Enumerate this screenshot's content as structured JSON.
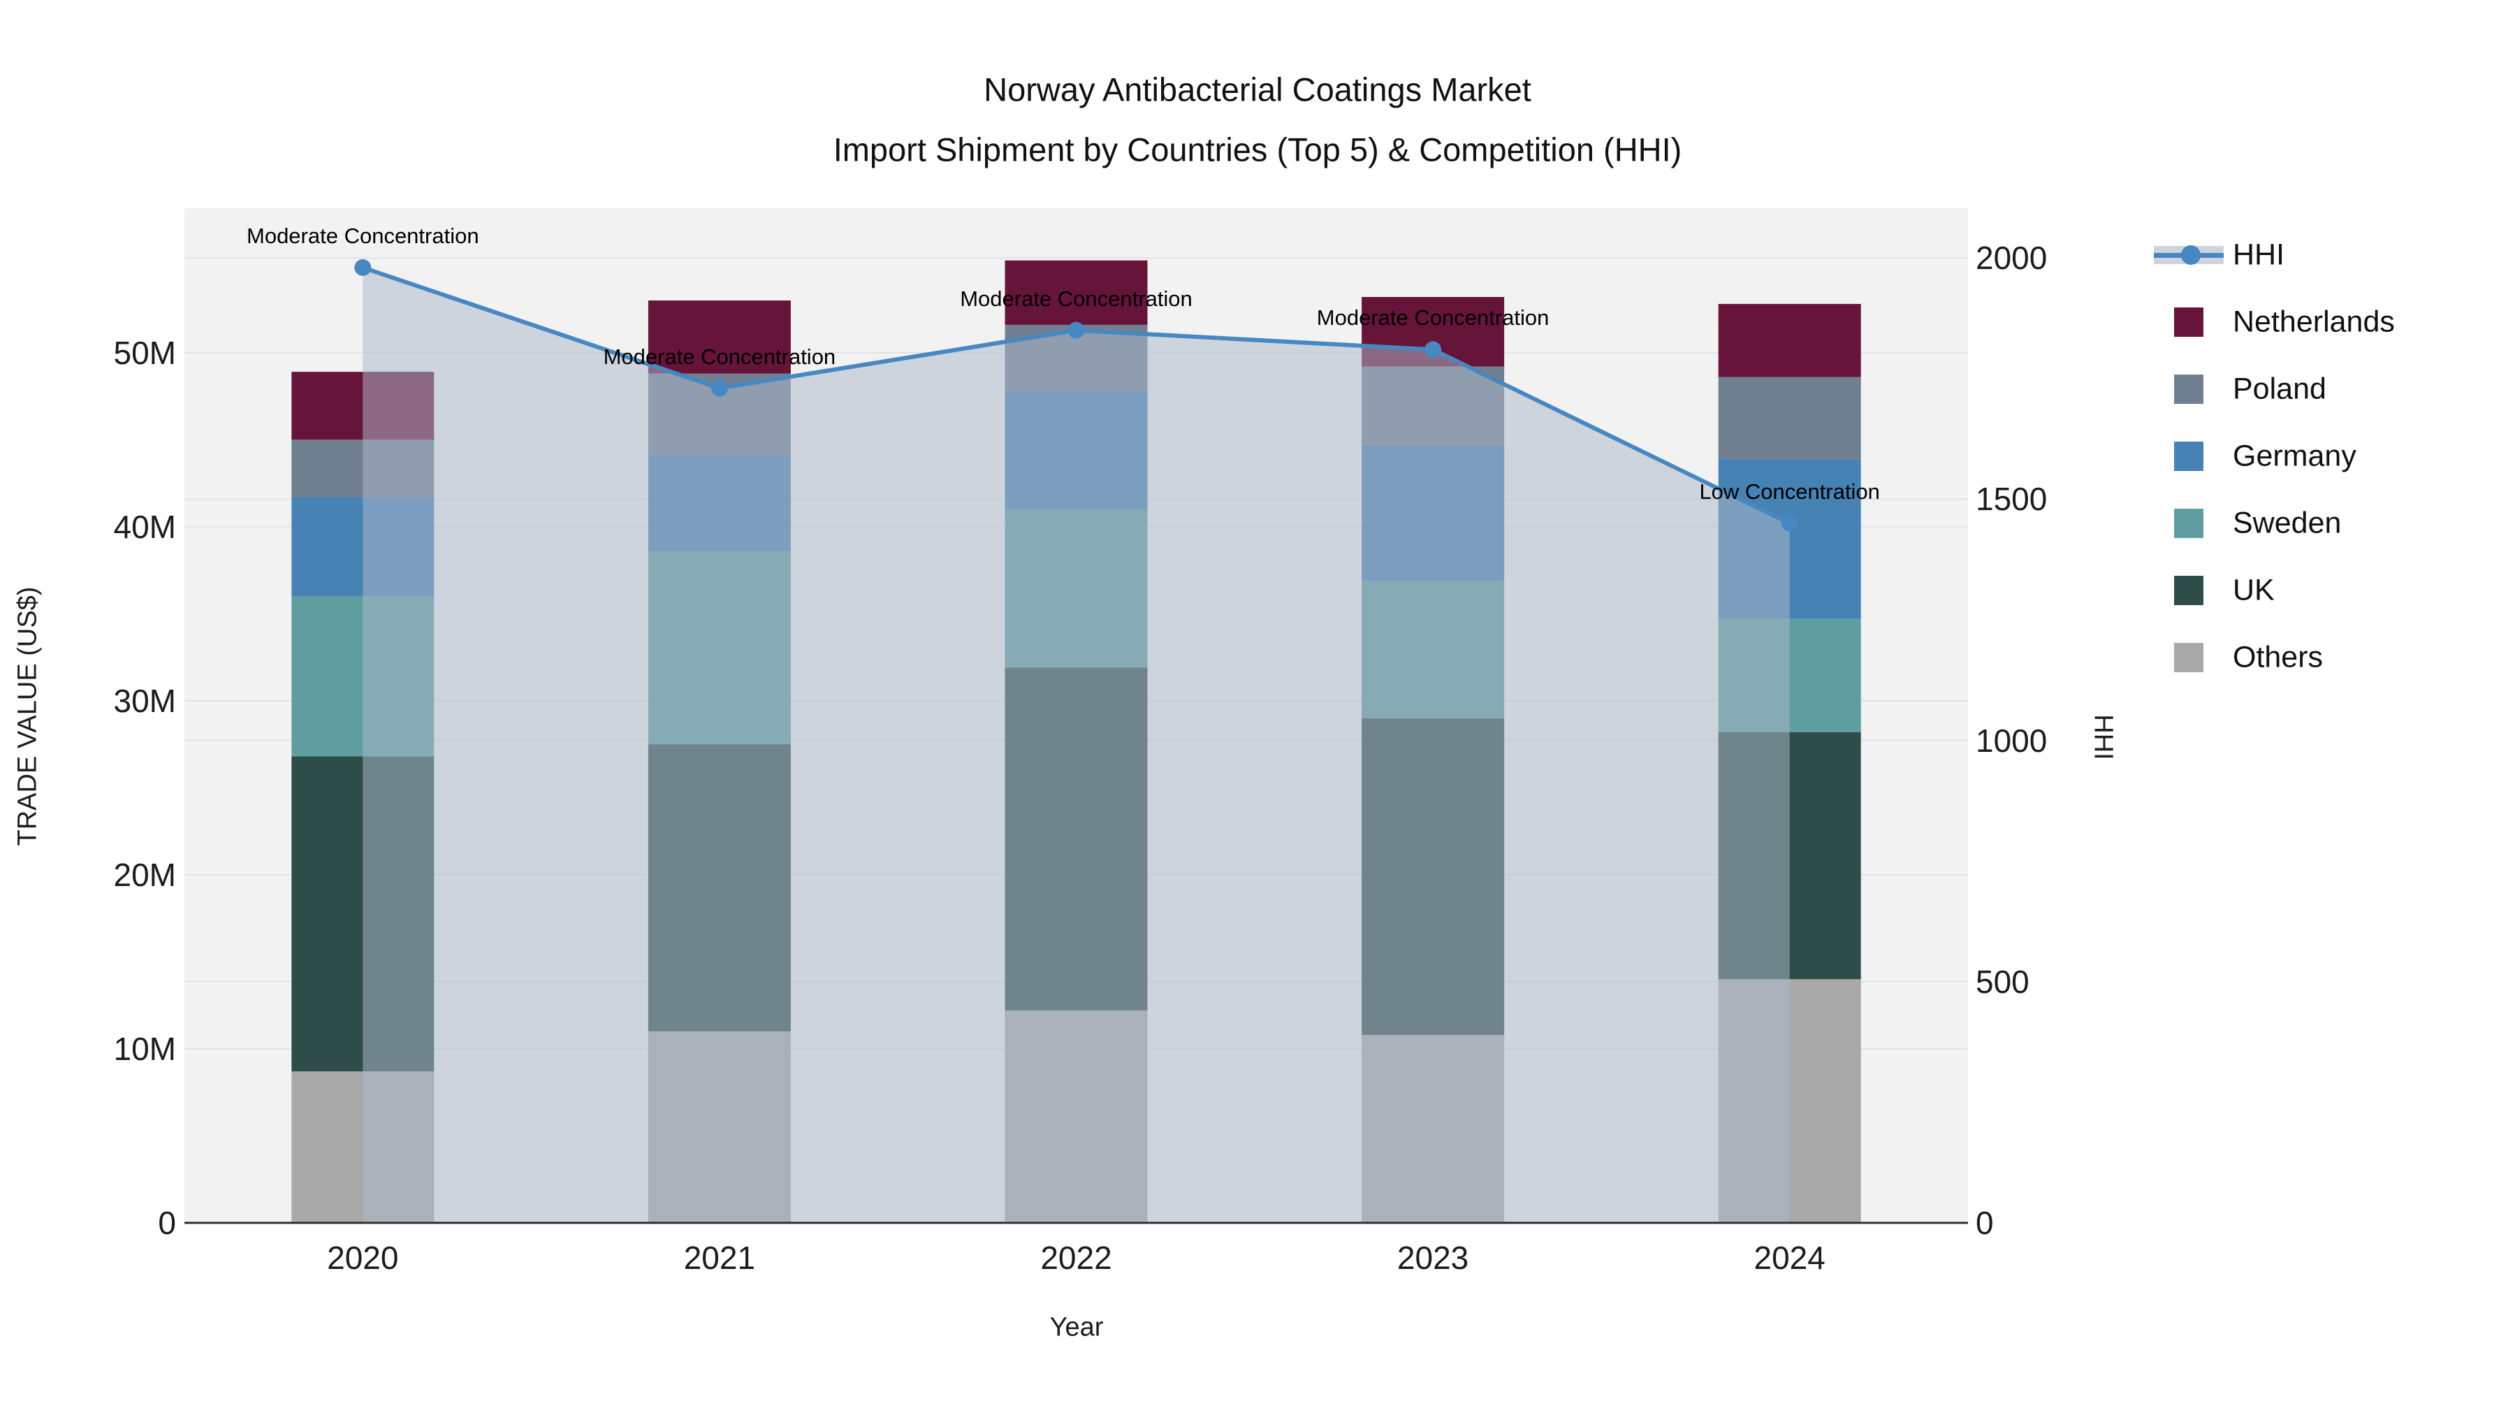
{
  "title": {
    "line1": "Norway Antibacterial Coatings Market",
    "line2": "Import Shipment by Countries (Top 5) & Competition (HHI)"
  },
  "axes": {
    "left": {
      "title": "TRADE VALUE (US$)",
      "ticks": [
        "0",
        "10M",
        "20M",
        "30M",
        "40M",
        "50M"
      ],
      "tick_values_musd": [
        0,
        10,
        20,
        30,
        40,
        50
      ],
      "range_musd": [
        0,
        58.3
      ]
    },
    "right": {
      "title": "HHI",
      "ticks": [
        "0",
        "500",
        "1000",
        "1500",
        "2000"
      ],
      "tick_values": [
        0,
        500,
        1000,
        1500,
        2000
      ],
      "range": [
        0,
        2103
      ]
    },
    "x": {
      "title": "Year",
      "ticks": [
        "2020",
        "2021",
        "2022",
        "2023",
        "2024"
      ]
    }
  },
  "legend": {
    "items": [
      {
        "label": "HHI",
        "type": "line",
        "color": "#4787c2",
        "band_color": "rgba(173,184,201,0.6)"
      },
      {
        "label": "Netherlands",
        "type": "square",
        "color": "#67143a"
      },
      {
        "label": "Poland",
        "type": "square",
        "color": "#708090"
      },
      {
        "label": "Germany",
        "type": "square",
        "color": "#4682b4"
      },
      {
        "label": "Sweden",
        "type": "square",
        "color": "#5f9ea0"
      },
      {
        "label": "UK",
        "type": "square",
        "color": "#2e4c48"
      },
      {
        "label": "Others",
        "type": "square",
        "color": "#a9a9a9"
      }
    ]
  },
  "chart_data": {
    "type": "combo_stacked_bar_line",
    "title": "Norway Antibacterial Coatings Market — Import Shipment by Countries (Top 5) & Competition (HHI)",
    "categories": [
      "2020",
      "2021",
      "2022",
      "2023",
      "2024"
    ],
    "bar_unit": "million US$",
    "bar_stack_bottom_to_top": [
      "Others",
      "UK",
      "Sweden",
      "Germany",
      "Poland",
      "Netherlands"
    ],
    "bar_series": [
      {
        "name": "Others",
        "color": "#a9a9a9",
        "values": [
          8.7,
          11.0,
          12.2,
          10.8,
          14.0
        ]
      },
      {
        "name": "UK",
        "color": "#2e4c48",
        "values": [
          18.1,
          16.5,
          19.7,
          18.2,
          14.2
        ]
      },
      {
        "name": "Sweden",
        "color": "#5f9ea0",
        "values": [
          9.2,
          11.1,
          9.1,
          7.9,
          6.5
        ]
      },
      {
        "name": "Germany",
        "color": "#4682b4",
        "values": [
          5.7,
          5.5,
          6.8,
          7.8,
          9.2
        ]
      },
      {
        "name": "Poland",
        "color": "#708090",
        "values": [
          3.3,
          4.7,
          3.8,
          4.5,
          4.7
        ]
      },
      {
        "name": "Netherlands",
        "color": "#67143a",
        "values": [
          3.9,
          4.2,
          3.7,
          4.0,
          4.2
        ]
      }
    ],
    "bar_totals_musd": [
      48.9,
      53.0,
      55.3,
      53.2,
      52.8
    ],
    "line_series": {
      "name": "HHI",
      "color": "#4787c2",
      "area_fill": "rgba(173,184,201,0.52)",
      "values": [
        1980,
        1730,
        1850,
        1810,
        1450
      ]
    },
    "annotations": [
      {
        "category": "2020",
        "text": "Moderate Concentration"
      },
      {
        "category": "2021",
        "text": "Moderate Concentration"
      },
      {
        "category": "2022",
        "text": "Moderate Concentration"
      },
      {
        "category": "2023",
        "text": "Moderate Concentration"
      },
      {
        "category": "2024",
        "text": "Low Concentration"
      }
    ],
    "xlabel": "Year",
    "ylabel": "TRADE VALUE (US$)",
    "y2label": "HHI",
    "ylim_musd": [
      0,
      58.3
    ],
    "y2lim": [
      0,
      2103
    ],
    "grid": true,
    "legend_position": "right",
    "plot_bg": "#f2f2f3"
  }
}
